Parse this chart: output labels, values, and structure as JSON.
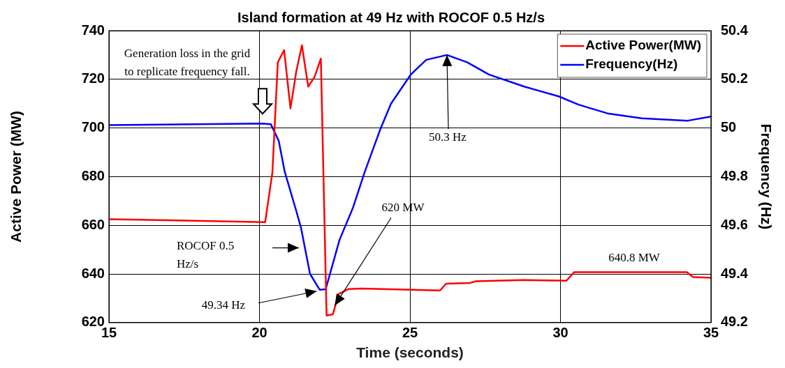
{
  "chart_data": {
    "type": "line",
    "title": "Island formation at 49 Hz with ROCOF 0.5 Hz/s",
    "xlabel": "Time (seconds)",
    "ylabel": "Active Power (MW)",
    "y2label": "Frequency (Hz)",
    "series": [
      {
        "name": "Active Power(MW)",
        "color": "#ff0000",
        "x": [
          15,
          20.19,
          20.43,
          20.61,
          20.82,
          21.03,
          21.22,
          21.41,
          21.62,
          21.83,
          22.04,
          22.23,
          22.44,
          22.63,
          22.96,
          23.4,
          26.0,
          26.2,
          27.0,
          27.2,
          28.8,
          30.2,
          30.45,
          34.2,
          34.4,
          35
        ],
        "values": [
          662.5,
          661.3,
          681.7,
          727,
          732,
          708,
          723,
          734,
          717,
          721,
          728.5,
          622.9,
          623.4,
          631.7,
          633.8,
          634,
          633.2,
          636,
          636.3,
          637,
          637.5,
          637.2,
          640.7,
          640.7,
          638.7,
          638.4
        ]
      },
      {
        "name": "Frequency(Hz)",
        "color": "#0000ff",
        "axis": "y2",
        "x": [
          15,
          20.1,
          20.38,
          20.64,
          20.84,
          21.22,
          21.38,
          21.68,
          22.0,
          22.2,
          22.66,
          23.1,
          23.5,
          24.0,
          24.37,
          25.03,
          25.54,
          26.23,
          26.9,
          27.62,
          28.8,
          29.94,
          30.6,
          31.56,
          32.7,
          34.23,
          35
        ],
        "values": [
          50.012,
          50.018,
          50.015,
          49.947,
          49.82,
          49.66,
          49.59,
          49.4,
          49.335,
          49.337,
          49.54,
          49.67,
          49.82,
          49.99,
          50.1,
          50.22,
          50.28,
          50.3,
          50.27,
          50.22,
          50.17,
          50.13,
          50.096,
          50.06,
          50.04,
          50.03,
          50.047
        ]
      }
    ],
    "xlim": [
      15,
      35
    ],
    "xticks": [
      15,
      20,
      25,
      30,
      35
    ],
    "ylim": [
      620,
      740
    ],
    "yticks": [
      620,
      640,
      660,
      680,
      700,
      720,
      740
    ],
    "y2lim": [
      49.2,
      50.4
    ],
    "y2ticks": [
      49.2,
      49.4,
      49.6,
      49.8,
      50,
      50.2,
      50.4
    ],
    "annotations": [
      "Generation loss in the grid\nto replicate frequency fall.",
      "ROCOF 0.5\nHz/s",
      {
        "text": "49.34 Hz",
        "x": 21.9,
        "y": 632.9
      },
      {
        "text": "620 MW",
        "x": 22.5,
        "y": 627
      },
      {
        "text": "50.3 Hz",
        "x": 26.23,
        "y": 730
      },
      "640.8 MW"
    ],
    "grid": true,
    "legend": "top right",
    "marker": "none",
    "line_style": "solid"
  }
}
